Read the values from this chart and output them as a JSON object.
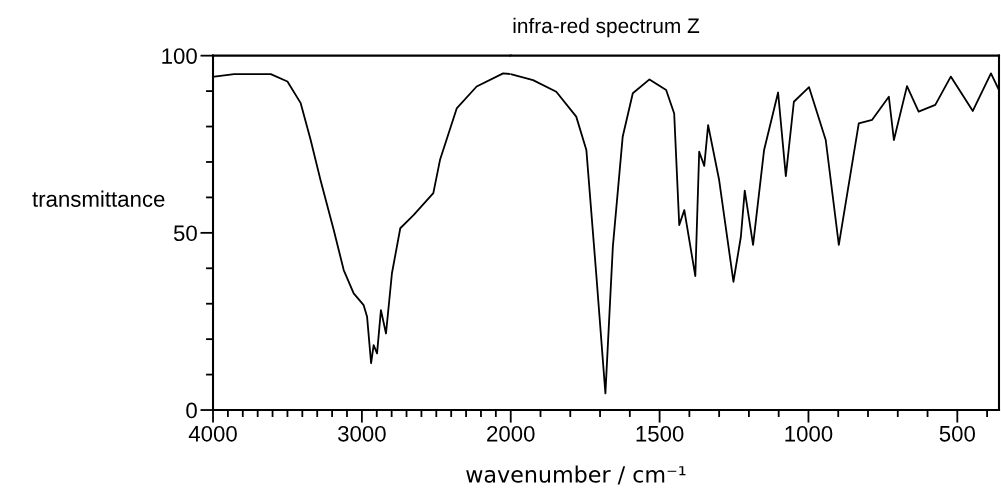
{
  "chart_data": [
    {
      "type": "line",
      "ylabel": "transmittance",
      "xlim": [
        4000,
        2000
      ],
      "ylim": [
        0,
        100
      ],
      "xticks": [
        4000,
        {
          "value": 3900,
          "label": null
        },
        {
          "value": 3800,
          "label": null
        },
        {
          "value": 3700,
          "label": null
        },
        {
          "value": 3600,
          "label": null
        },
        {
          "value": 3500,
          "label": null
        },
        {
          "value": 3400,
          "label": null
        },
        {
          "value": 3300,
          "label": null
        },
        {
          "value": 3200,
          "label": null
        },
        {
          "value": 3100,
          "label": null
        },
        3000,
        {
          "value": 2900,
          "label": null
        },
        {
          "value": 2800,
          "label": null
        },
        {
          "value": 2700,
          "label": null
        },
        {
          "value": 2600,
          "label": null
        },
        {
          "value": 2500,
          "label": null
        },
        {
          "value": 2400,
          "label": null
        },
        {
          "value": 2300,
          "label": null
        },
        {
          "value": 2200,
          "label": null
        },
        {
          "value": 2100,
          "label": null
        }
      ],
      "yticks": [
        0,
        {
          "value": 10,
          "label": null
        },
        {
          "value": 20,
          "label": null
        },
        {
          "value": 30,
          "label": null
        },
        {
          "value": 40,
          "label": null
        },
        50,
        {
          "value": 60,
          "label": null
        },
        {
          "value": 70,
          "label": null
        },
        {
          "value": 80,
          "label": null
        },
        {
          "value": 90,
          "label": null
        },
        100
      ],
      "series": [
        {
          "color": "#000000",
          "x": [
            3991,
            3858,
            3612,
            3500,
            3411,
            3344,
            3278,
            3189,
            3122,
            3055,
            2988,
            2965,
            2938,
            2921,
            2898,
            2872,
            2838,
            2798,
            2742,
            2653,
            2520,
            2475,
            2363,
            2229,
            2051,
            2000
          ],
          "values": [
            94.1,
            94.8,
            94.8,
            92.7,
            86.6,
            76.2,
            64.9,
            50.8,
            39.5,
            32.9,
            29.6,
            26.3,
            13.2,
            18.3,
            16.0,
            28.2,
            21.6,
            38.6,
            51.3,
            55.0,
            61.2,
            70.6,
            85.1,
            91.3,
            95.0,
            94.8
          ]
        }
      ]
    },
    {
      "type": "line",
      "title": "infra-red spectrum Z",
      "xlabel": "wavenumber / cm⁻¹",
      "tick_labels": "x",
      "xlim": [
        2000,
        360
      ],
      "ylim": [
        0,
        100
      ],
      "xticks": [
        2000,
        {
          "value": 1900,
          "label": null
        },
        {
          "value": 1800,
          "label": null
        },
        {
          "value": 1700,
          "label": null
        },
        {
          "value": 1600,
          "label": null
        },
        1500,
        {
          "value": 1400,
          "label": null
        },
        {
          "value": 1300,
          "label": null
        },
        {
          "value": 1200,
          "label": null
        },
        {
          "value": 1100,
          "label": null
        },
        1000,
        {
          "value": 900,
          "label": null
        },
        {
          "value": 800,
          "label": null
        },
        {
          "value": 700,
          "label": null
        },
        {
          "value": 600,
          "label": null
        },
        500,
        {
          "value": 400,
          "label": null
        }
      ],
      "series": [
        {
          "color": "#000000",
          "x": [
            2000,
            1925,
            1847,
            1780,
            1746,
            1713,
            1682,
            1657,
            1624,
            1590,
            1534,
            1478,
            1451,
            1434,
            1417,
            1380,
            1367,
            1350,
            1337,
            1300,
            1252,
            1227,
            1214,
            1186,
            1149,
            1102,
            1076,
            1049,
            998,
            942,
            898,
            831,
            786,
            730,
            713,
            669,
            630,
            574,
            522,
            448,
            387,
            360
          ],
          "values": [
            94.8,
            93.1,
            89.8,
            82.8,
            73.4,
            38.6,
            4.7,
            46.1,
            77.1,
            89.4,
            93.3,
            90.3,
            83.7,
            52.2,
            56.4,
            37.8,
            72.9,
            68.9,
            80.4,
            64.9,
            36.2,
            48.9,
            61.9,
            46.6,
            73.4,
            89.6,
            66.0,
            87.0,
            91.1,
            76.2,
            46.6,
            80.9,
            81.9,
            88.4,
            76.2,
            91.4,
            84.2,
            86.1,
            94.1,
            84.4,
            95.0,
            90.3
          ]
        }
      ]
    }
  ]
}
